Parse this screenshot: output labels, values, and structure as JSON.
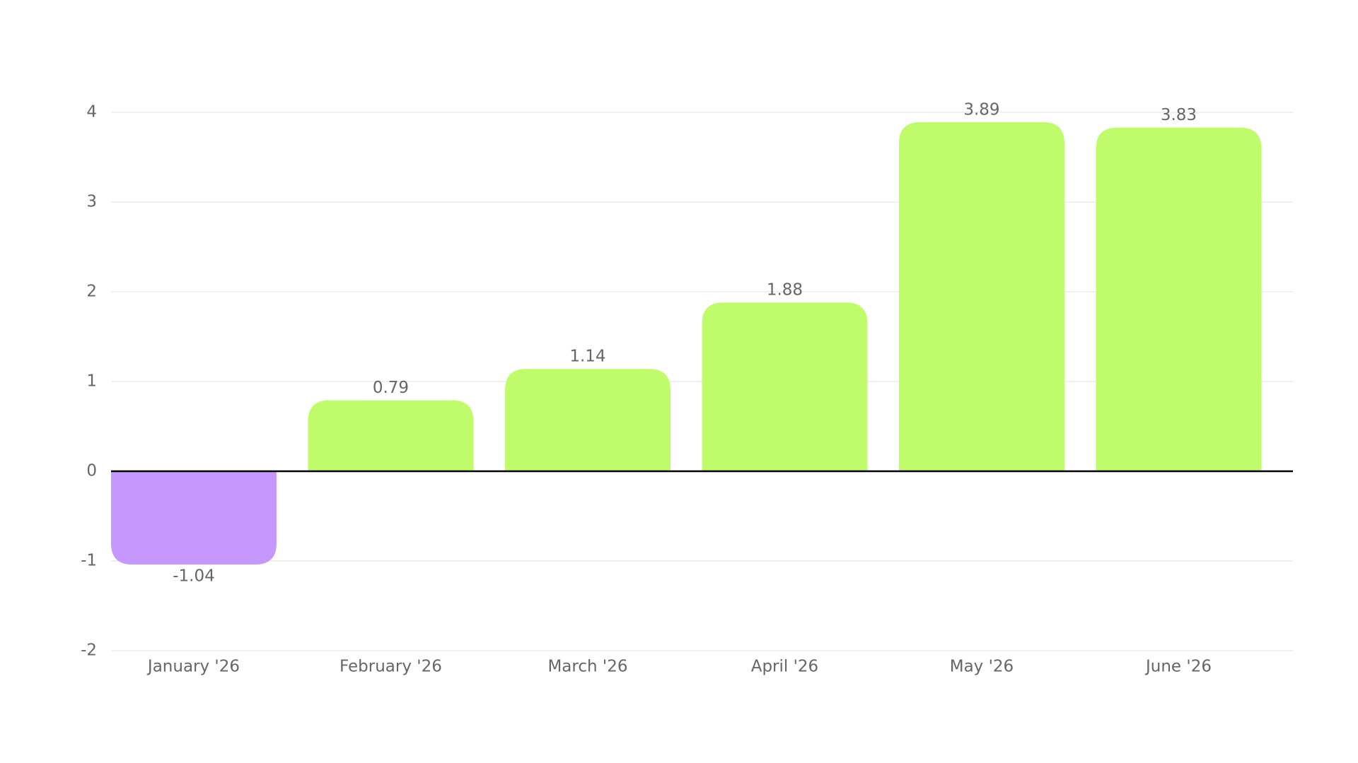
{
  "chart_data": {
    "type": "bar",
    "categories": [
      "January '26",
      "February '26",
      "March '26",
      "April '26",
      "May '26",
      "June '26"
    ],
    "values": [
      -1.04,
      0.79,
      1.14,
      1.88,
      3.89,
      3.83
    ],
    "colors": [
      "#c697fd",
      "#bffb6a",
      "#bffb6a",
      "#bffb6a",
      "#bffb6a",
      "#bffb6a"
    ],
    "ylim": [
      -2,
      4
    ],
    "yticks": [
      -2,
      -1,
      0,
      1,
      2,
      3,
      4
    ],
    "grid": true
  }
}
